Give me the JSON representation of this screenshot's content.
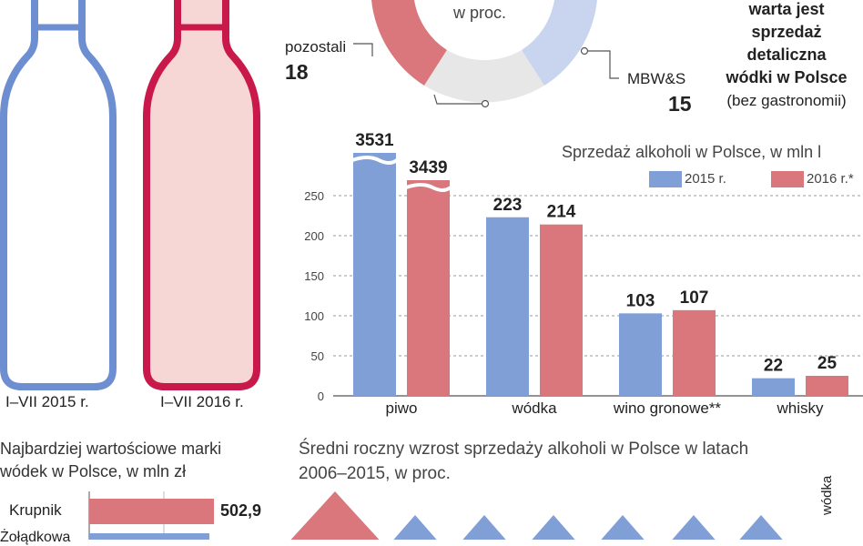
{
  "colors": {
    "blue": "#7f9fd6",
    "blue_light": "#c9d5ee",
    "red": "#d9777c",
    "red_dark": "#c8194a",
    "pink_fill": "#f7d7d6",
    "grey_fill": "#e7e7e7",
    "axis": "#555555",
    "grid": "#9a9a9a"
  },
  "bottles": {
    "left_label": "I–VII 2015 r.",
    "right_label": "I–VII 2016 r."
  },
  "donut": {
    "center_text": "w proc.",
    "segments": [
      {
        "label": "pozostali",
        "value": "18"
      },
      {
        "label": "MBW&S",
        "value": "15"
      }
    ]
  },
  "side_title": {
    "line1": "warta jest",
    "line2": "sprzedaż",
    "line3": "detaliczna",
    "line4": "wódki w Polsce",
    "line5": "(bez gastronomii)"
  },
  "chart_data": [
    {
      "type": "bar",
      "title": "Sprzedaż alkoholi w Polsce, w mln l",
      "categories": [
        "piwo",
        "wódka",
        "wino gronowe**",
        "whisky"
      ],
      "series": [
        {
          "name": "2015 r.",
          "color": "#7f9fd6",
          "values": [
            3531,
            223,
            103,
            22
          ]
        },
        {
          "name": "2016 r.*",
          "color": "#d9777c",
          "values": [
            3439,
            214,
            107,
            25
          ]
        }
      ],
      "value_labels": [
        [
          "3531",
          "223",
          "103",
          "22"
        ],
        [
          "3439",
          "214",
          "107",
          "25"
        ]
      ],
      "y_ticks": [
        "0",
        "50",
        "100",
        "150",
        "200",
        "250"
      ],
      "ylim": [
        0,
        250
      ],
      "axis_break": true,
      "grid": true,
      "legend_position": "top-right"
    },
    {
      "type": "bar",
      "title": "Najbardziej wartościowe marki wódek w Polsce, w mln zł",
      "categories": [
        "Krupnik",
        "Żołądkowa"
      ],
      "values": [
        502.9,
        null
      ],
      "value_labels": [
        "502,9"
      ]
    },
    {
      "type": "area",
      "title": "Średni roczny wzrost sprzedaży alkoholi w Polsce w latach 2006–2015, w proc.",
      "categories": [
        "wódka"
      ]
    }
  ],
  "labels": {
    "bar_title": "Sprzedaż alkoholi w Polsce, w mln l",
    "legend_2015": "2015 r.",
    "legend_2016": "2016 r.*",
    "brands_title_1": "Najbardziej wartościowe marki",
    "brands_title_2": "wódek w Polsce, w mln zł",
    "brand_1": "Krupnik",
    "brand_1_value": "502,9",
    "brand_2": "Żołądkowa",
    "growth_title_1": "Średni roczny wzrost sprzedaży alkoholi w Polsce w latach",
    "growth_title_2": "2006–2015, w proc.",
    "growth_vertical": "wódka"
  }
}
